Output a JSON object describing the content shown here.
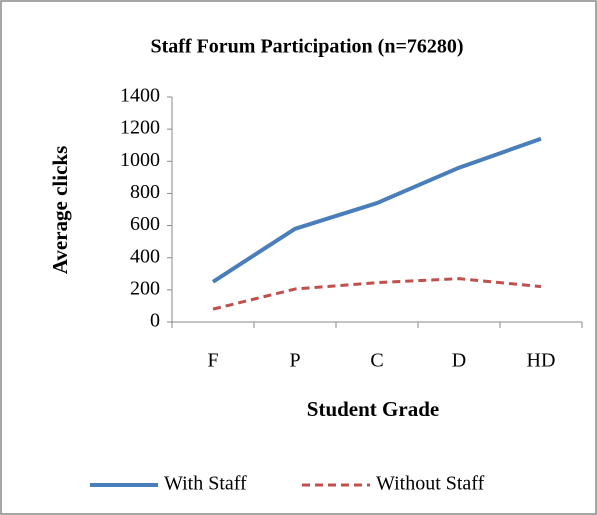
{
  "chart_data": {
    "type": "line",
    "title": "Staff Forum Participation (n=76280)",
    "x_label": "Student Grade",
    "y_label": "Average clicks",
    "categories": [
      "F",
      "P",
      "C",
      "D",
      "HD"
    ],
    "series": [
      {
        "name": "With Staff",
        "color": "#4a7ebb",
        "dashed": false,
        "values": [
          250,
          580,
          740,
          960,
          1140
        ]
      },
      {
        "name": "Without Staff",
        "color": "#c0504d",
        "dashed": true,
        "values": [
          80,
          205,
          245,
          270,
          220
        ]
      }
    ],
    "ylim": [
      0,
      1400
    ],
    "yticks": [
      0,
      200,
      400,
      600,
      800,
      1000,
      1200,
      1400
    ],
    "grid": false,
    "legend": "bottom"
  }
}
